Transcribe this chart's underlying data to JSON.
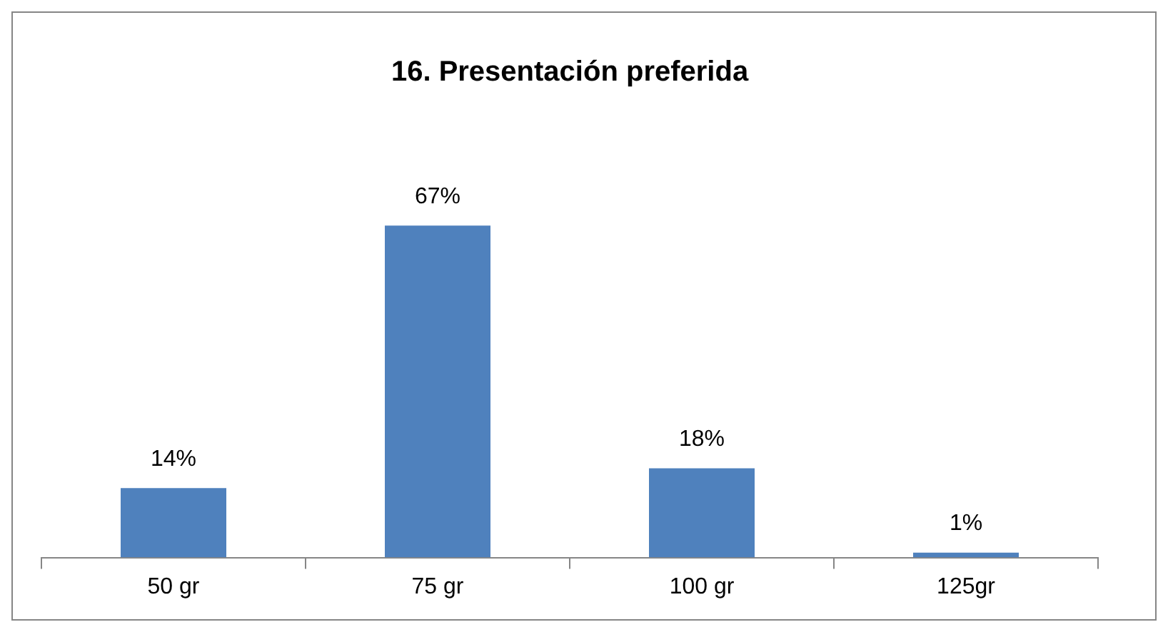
{
  "chart_data": {
    "type": "bar",
    "title": "16. Presentación preferida",
    "categories": [
      "50 gr",
      "75 gr",
      "100 gr",
      "125gr"
    ],
    "values": [
      14,
      67,
      18,
      1
    ],
    "color": "#4f81bd",
    "value_labels": [
      "14%",
      "67%",
      "18%",
      "1%"
    ],
    "grid": false,
    "legend": false
  }
}
